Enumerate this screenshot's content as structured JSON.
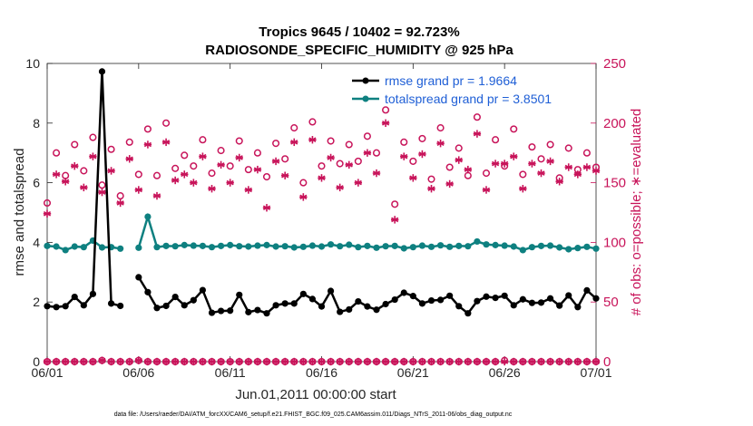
{
  "chart_data": {
    "type": "line",
    "title_line1": "Tropics 9645 / 10402 = 92.723%",
    "title_line2": "RADIOSONDE_SPECIFIC_HUMIDITY @ 925 hPa",
    "xlabel": "Jun.01,2011 00:00:00 start",
    "ylabel_left": "rmse and totalspread",
    "ylabel_right": "# of obs: o=possible; ∗=evaluated",
    "footer": "data file: /Users/raeder/DAI/ATM_forcXX/CAM6_setup/f.e21.FHIST_BGC.f09_025.CAM6assim.011/Diags_NTrS_2011-06/obs_diag_output.nc",
    "x_range": [
      0,
      30
    ],
    "x_ticks": [
      0,
      5,
      10,
      15,
      20,
      25,
      30
    ],
    "x_tick_labels": [
      "06/01",
      "06/06",
      "06/11",
      "06/16",
      "06/21",
      "06/26",
      "07/01"
    ],
    "ylim_left": [
      0,
      10
    ],
    "y_ticks_left": [
      "0",
      "2",
      "4",
      "6",
      "8",
      "10"
    ],
    "ylim_right": [
      0,
      250
    ],
    "y_ticks_right": [
      "0",
      "50",
      "100",
      "150",
      "200",
      "250"
    ],
    "colors": {
      "rmse": "#000000",
      "spread": "#0e8080",
      "obs": "#c8145a",
      "legend_text": "#1f5fd6"
    },
    "series": [
      {
        "name": "rmse grand pr = 1.9664",
        "axis": "left",
        "x": [
          0,
          0.5,
          1,
          1.5,
          2,
          2.5,
          3,
          3.5,
          4,
          4.5,
          5,
          5.5,
          6,
          6.5,
          7,
          7.5,
          8,
          8.5,
          9,
          9.5,
          10,
          10.5,
          11,
          11.5,
          12,
          12.5,
          13,
          13.5,
          14,
          14.5,
          15,
          15.5,
          16,
          16.5,
          17,
          17.5,
          18,
          18.5,
          19,
          19.5,
          20,
          20.5,
          21,
          21.5,
          22,
          22.5,
          23,
          23.5,
          24,
          24.5,
          25,
          25.5,
          26,
          26.5,
          27,
          27.5,
          28,
          28.5,
          29,
          29.5,
          30
        ],
        "values": [
          1.86,
          1.83,
          1.86,
          2.17,
          1.89,
          2.27,
          9.73,
          1.95,
          1.87,
          null,
          2.83,
          2.33,
          1.8,
          1.87,
          2.17,
          1.89,
          2.06,
          2.4,
          1.64,
          1.7,
          1.71,
          2.24,
          1.66,
          1.73,
          1.62,
          1.89,
          1.95,
          1.95,
          2.27,
          2.1,
          1.85,
          2.37,
          1.67,
          1.75,
          2.02,
          1.85,
          1.74,
          1.93,
          2.08,
          2.31,
          2.2,
          1.95,
          2.05,
          2.07,
          2.21,
          1.86,
          1.62,
          2.03,
          2.18,
          2.14,
          2.21,
          1.89,
          2.09,
          1.97,
          1.98,
          2.12,
          1.88,
          2.22,
          1.83,
          2.39,
          2.12
        ]
      },
      {
        "name": "totalspread grand pr = 3.8501",
        "axis": "left",
        "x": [
          0,
          0.5,
          1,
          1.5,
          2,
          2.5,
          3,
          3.5,
          4,
          4.5,
          5,
          5.5,
          6,
          6.5,
          7,
          7.5,
          8,
          8.5,
          9,
          9.5,
          10,
          10.5,
          11,
          11.5,
          12,
          12.5,
          13,
          13.5,
          14,
          14.5,
          15,
          15.5,
          16,
          16.5,
          17,
          17.5,
          18,
          18.5,
          19,
          19.5,
          20,
          20.5,
          21,
          21.5,
          22,
          22.5,
          23,
          23.5,
          24,
          24.5,
          25,
          25.5,
          26,
          26.5,
          27,
          27.5,
          28,
          28.5,
          29,
          29.5,
          30
        ],
        "values": [
          3.88,
          3.86,
          3.74,
          3.86,
          3.84,
          4.06,
          3.83,
          3.84,
          3.79,
          null,
          3.82,
          4.86,
          3.84,
          3.88,
          3.87,
          3.91,
          3.89,
          3.88,
          3.84,
          3.88,
          3.91,
          3.87,
          3.86,
          3.89,
          3.91,
          3.86,
          3.87,
          3.83,
          3.85,
          3.89,
          3.86,
          3.93,
          3.87,
          3.92,
          3.84,
          3.88,
          3.82,
          3.87,
          3.88,
          3.8,
          3.84,
          3.89,
          3.85,
          3.9,
          3.85,
          3.88,
          3.87,
          4.03,
          3.93,
          3.91,
          3.89,
          3.86,
          3.74,
          3.84,
          3.88,
          3.89,
          3.83,
          3.77,
          3.81,
          3.85,
          3.79
        ]
      },
      {
        "name": "obs possible",
        "axis": "right",
        "marker": "o",
        "x": [
          0,
          0.5,
          1,
          1.5,
          2,
          2.5,
          3,
          3.5,
          4,
          4.5,
          5,
          5.5,
          6,
          6.5,
          7,
          7.5,
          8,
          8.5,
          9,
          9.5,
          10,
          10.5,
          11,
          11.5,
          12,
          12.5,
          13,
          13.5,
          14,
          14.5,
          15,
          15.5,
          16,
          16.5,
          17,
          17.5,
          18,
          18.5,
          19,
          19.5,
          20,
          20.5,
          21,
          21.5,
          22,
          22.5,
          23,
          23.5,
          24,
          24.5,
          25,
          25.5,
          26,
          26.5,
          27,
          27.5,
          28,
          28.5,
          29,
          29.5,
          30
        ],
        "values": [
          133,
          175,
          156,
          182,
          160,
          188,
          148,
          178,
          139,
          184,
          157,
          195,
          156,
          200,
          162,
          173,
          164,
          186,
          158,
          177,
          164,
          185,
          161,
          175,
          155,
          183,
          170,
          196,
          150,
          201,
          164,
          185,
          166,
          182,
          168,
          189,
          175,
          211,
          132,
          184,
          168,
          187,
          153,
          196,
          163,
          179,
          156,
          205,
          158,
          186,
          164,
          195,
          157,
          180,
          170,
          182,
          154,
          179,
          161,
          175,
          163
        ]
      },
      {
        "name": "obs evaluated",
        "axis": "right",
        "marker": "*",
        "x": [
          0,
          0.5,
          1,
          1.5,
          2,
          2.5,
          3,
          3.5,
          4,
          4.5,
          5,
          5.5,
          6,
          6.5,
          7,
          7.5,
          8,
          8.5,
          9,
          9.5,
          10,
          10.5,
          11,
          11.5,
          12,
          12.5,
          13,
          13.5,
          14,
          14.5,
          15,
          15.5,
          16,
          16.5,
          17,
          17.5,
          18,
          18.5,
          19,
          19.5,
          20,
          20.5,
          21,
          21.5,
          22,
          22.5,
          23,
          23.5,
          24,
          24.5,
          25,
          25.5,
          26,
          26.5,
          27,
          27.5,
          28,
          28.5,
          29,
          29.5,
          30
        ],
        "values": [
          124,
          157,
          151,
          164,
          146,
          172,
          142,
          160,
          133,
          170,
          144,
          182,
          139,
          184,
          152,
          157,
          150,
          172,
          145,
          165,
          150,
          171,
          144,
          161,
          129,
          168,
          156,
          184,
          138,
          186,
          154,
          171,
          146,
          165,
          150,
          175,
          158,
          200,
          119,
          172,
          154,
          174,
          145,
          183,
          149,
          169,
          161,
          191,
          144,
          166,
          166,
          172,
          145,
          166,
          158,
          168,
          151,
          163,
          157,
          163,
          160
        ]
      },
      {
        "name": "obs possible (bottom)",
        "axis": "right",
        "marker": "o",
        "x": [
          0,
          0.5,
          1,
          1.5,
          2,
          2.5,
          3,
          3.5,
          4,
          4.5,
          5,
          5.5,
          6,
          6.5,
          7,
          7.5,
          8,
          8.5,
          9,
          9.5,
          10,
          10.5,
          11,
          11.5,
          12,
          12.5,
          13,
          13.5,
          14,
          14.5,
          15,
          15.5,
          16,
          16.5,
          17,
          17.5,
          18,
          18.5,
          19,
          19.5,
          20,
          20.5,
          21,
          21.5,
          22,
          22.5,
          23,
          23.5,
          24,
          24.5,
          25,
          25.5,
          26,
          26.5,
          27,
          27.5,
          28,
          28.5,
          29,
          29.5,
          30
        ],
        "values": [
          0,
          0,
          0,
          0,
          0,
          0,
          1,
          0,
          0,
          0,
          1,
          0,
          0,
          0,
          0,
          0,
          0,
          0,
          0,
          0,
          0,
          0,
          0,
          0,
          0,
          0,
          0,
          0,
          0,
          0,
          0,
          0,
          0,
          0,
          0,
          0,
          0,
          0,
          0,
          0,
          0,
          0,
          0,
          0,
          0,
          0,
          0,
          0,
          0,
          0,
          1,
          0,
          0,
          0,
          0,
          0,
          0,
          0,
          0,
          0,
          0
        ]
      },
      {
        "name": "obs evaluated (bottom)",
        "axis": "right",
        "marker": "*",
        "x": [
          0,
          0.5,
          1,
          1.5,
          2,
          2.5,
          3,
          3.5,
          4,
          4.5,
          5,
          5.5,
          6,
          6.5,
          7,
          7.5,
          8,
          8.5,
          9,
          9.5,
          10,
          10.5,
          11,
          11.5,
          12,
          12.5,
          13,
          13.5,
          14,
          14.5,
          15,
          15.5,
          16,
          16.5,
          17,
          17.5,
          18,
          18.5,
          19,
          19.5,
          20,
          20.5,
          21,
          21.5,
          22,
          22.5,
          23,
          23.5,
          24,
          24.5,
          25,
          25.5,
          26,
          26.5,
          27,
          27.5,
          28,
          28.5,
          29,
          29.5,
          30
        ],
        "values": [
          0,
          0,
          0,
          0,
          0,
          0,
          1,
          0,
          0,
          0,
          1,
          0,
          0,
          0,
          0,
          0,
          0,
          0,
          0,
          0,
          0,
          0,
          0,
          0,
          0,
          0,
          0,
          0,
          0,
          0,
          0,
          0,
          0,
          0,
          0,
          0,
          0,
          0,
          0,
          0,
          0,
          0,
          0,
          0,
          0,
          0,
          0,
          0,
          0,
          0,
          0,
          0,
          0,
          0,
          0,
          0,
          0,
          0,
          0,
          0,
          0
        ]
      }
    ],
    "legend": [
      "rmse grand pr = 1.9664",
      "totalspread grand pr = 3.8501"
    ],
    "legend_position": "top-right",
    "grid": false
  }
}
